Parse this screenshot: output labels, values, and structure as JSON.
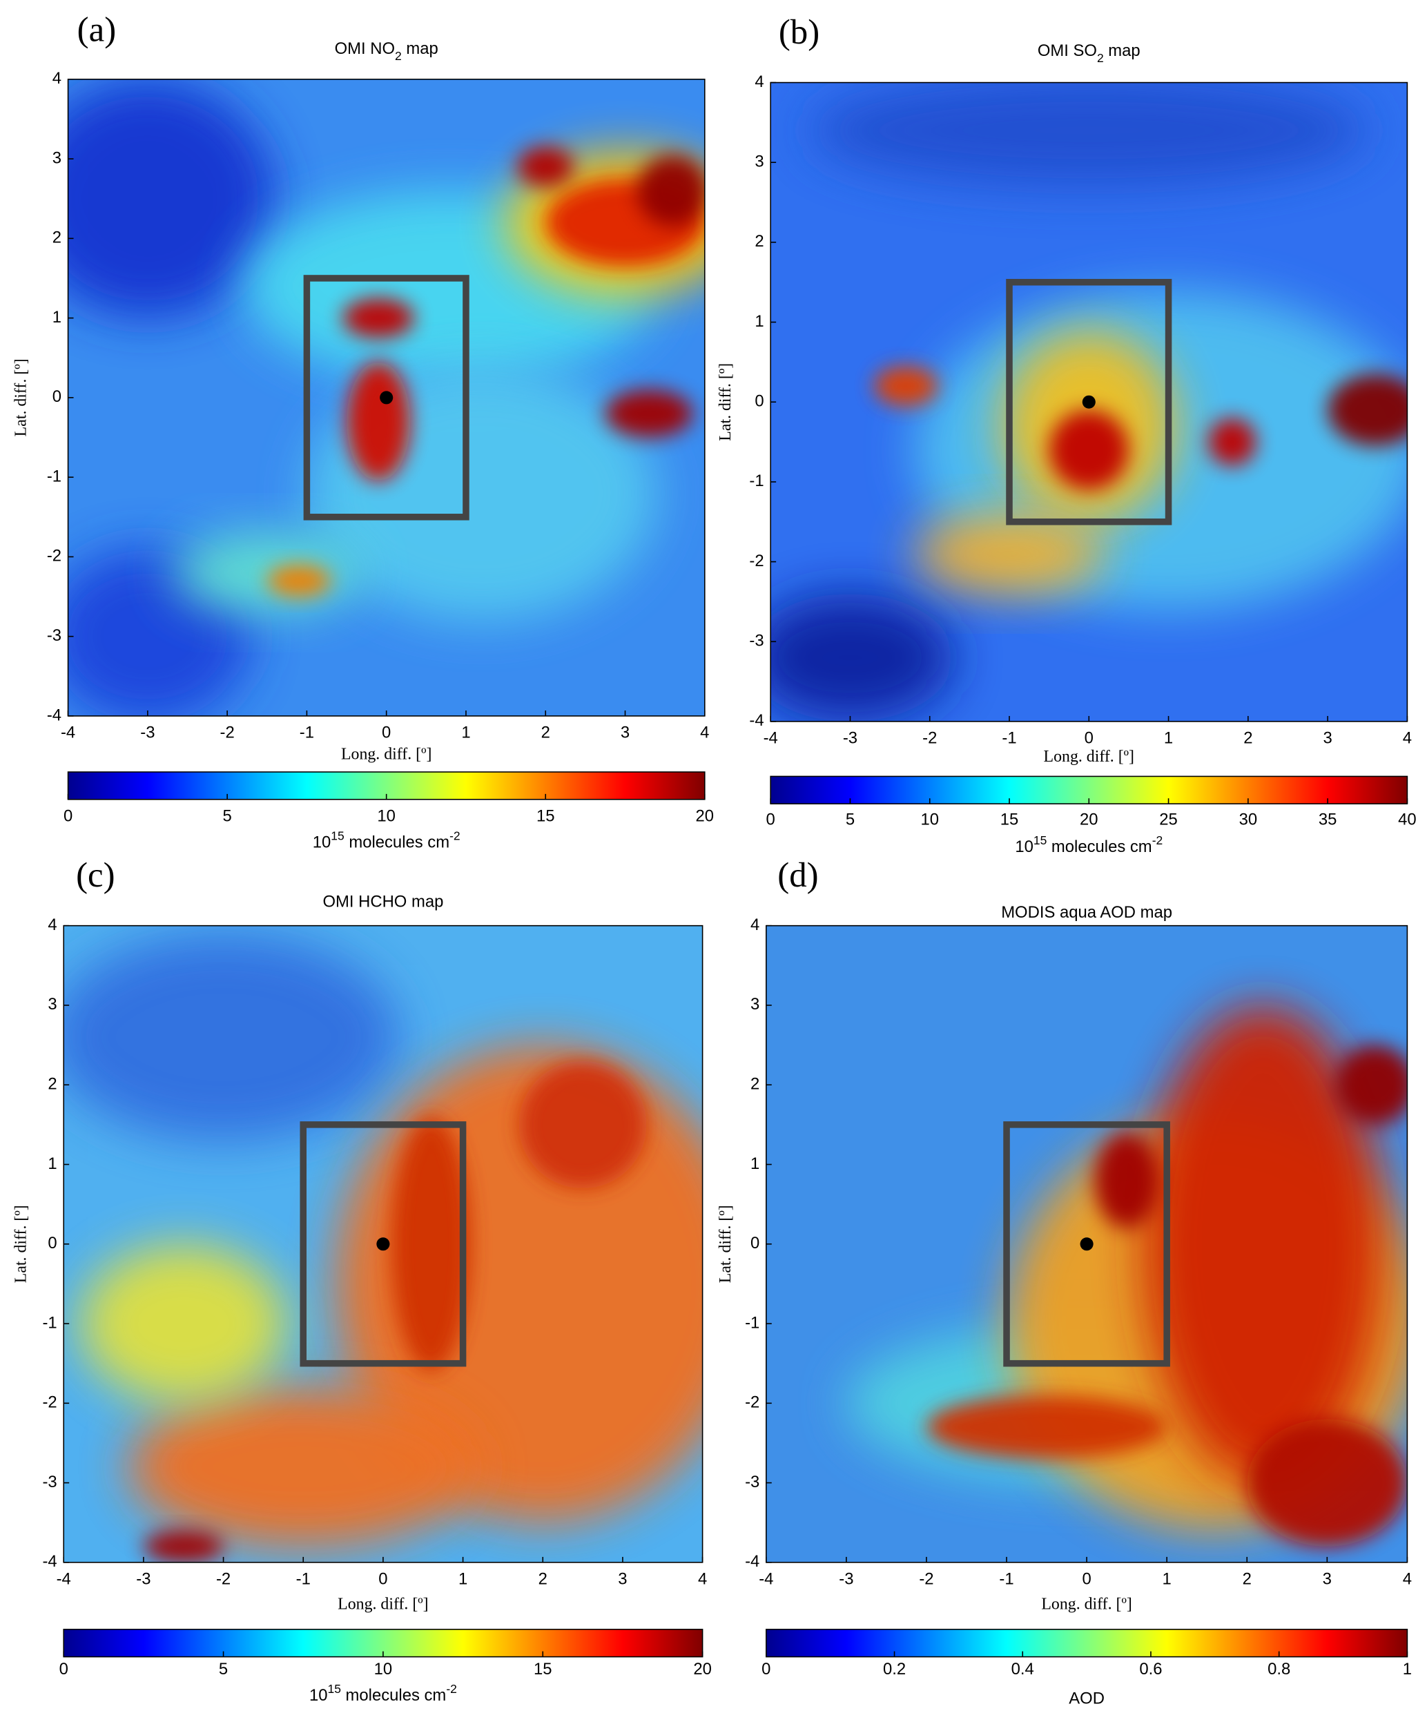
{
  "chart_data": [
    {
      "type": "heatmap",
      "panel": "(a)",
      "title": [
        "OMI NO",
        "2",
        " map"
      ],
      "xlabel": "Long. diff. [º]",
      "ylabel": "Lat. diff. [º]",
      "xlim": [
        -4,
        4
      ],
      "ylim": [
        -4,
        4
      ],
      "xticks": [
        -4,
        -3,
        -2,
        -1,
        0,
        1,
        2,
        3,
        4
      ],
      "yticks": [
        -4,
        -3,
        -2,
        -1,
        0,
        1,
        2,
        3,
        4
      ],
      "colorbar": {
        "lim": [
          0,
          20
        ],
        "ticks": [
          0,
          5,
          10,
          15,
          20
        ],
        "label": [
          "10",
          "15",
          " molecules cm",
          "-2"
        ]
      },
      "box": {
        "x": [
          -1,
          1
        ],
        "y": [
          -1.5,
          1.5
        ]
      },
      "point": {
        "x": 0,
        "y": 0
      }
    },
    {
      "type": "heatmap",
      "panel": "(b)",
      "title": [
        "OMI SO",
        "2",
        " map"
      ],
      "xlabel": "Long. diff. [º]",
      "ylabel": "Lat. diff. [º]",
      "xlim": [
        -4,
        4
      ],
      "ylim": [
        -4,
        4
      ],
      "xticks": [
        -4,
        -3,
        -2,
        -1,
        0,
        1,
        2,
        3,
        4
      ],
      "yticks": [
        -4,
        -3,
        -2,
        -1,
        0,
        1,
        2,
        3,
        4
      ],
      "colorbar": {
        "lim": [
          0,
          40
        ],
        "ticks": [
          0,
          5,
          10,
          15,
          20,
          25,
          30,
          35,
          40
        ],
        "label": [
          "10",
          "15",
          " molecules cm",
          "-2"
        ]
      },
      "box": {
        "x": [
          -1,
          1
        ],
        "y": [
          -1.5,
          1.5
        ]
      },
      "point": {
        "x": 0,
        "y": 0
      }
    },
    {
      "type": "heatmap",
      "panel": "(c)",
      "title": [
        "OMI HCHO map"
      ],
      "xlabel": "Long. diff. [º]",
      "ylabel": "Lat. diff. [º]",
      "xlim": [
        -4,
        4
      ],
      "ylim": [
        -4,
        4
      ],
      "xticks": [
        -4,
        -3,
        -2,
        -1,
        0,
        1,
        2,
        3,
        4
      ],
      "yticks": [
        -4,
        -3,
        -2,
        -1,
        0,
        1,
        2,
        3,
        4
      ],
      "colorbar": {
        "lim": [
          0,
          20
        ],
        "ticks": [
          0,
          5,
          10,
          15,
          20
        ],
        "label": [
          "10",
          "15",
          " molecules cm",
          "-2"
        ]
      },
      "box": {
        "x": [
          -1,
          1
        ],
        "y": [
          -1.5,
          1.5
        ]
      },
      "point": {
        "x": 0,
        "y": 0
      }
    },
    {
      "type": "heatmap",
      "panel": "(d)",
      "title": [
        "MODIS aqua AOD map"
      ],
      "xlabel": "Long. diff. [º]",
      "ylabel": "Lat. diff. [º]",
      "xlim": [
        -4,
        4
      ],
      "ylim": [
        -4,
        4
      ],
      "xticks": [
        -4,
        -3,
        -2,
        -1,
        0,
        1,
        2,
        3,
        4
      ],
      "yticks": [
        -4,
        -3,
        -2,
        -1,
        0,
        1,
        2,
        3,
        4
      ],
      "colorbar": {
        "lim": [
          0,
          1
        ],
        "ticks": [
          0,
          0.2,
          0.4,
          0.6,
          0.8,
          1
        ],
        "label": [
          "AOD"
        ]
      },
      "box": {
        "x": [
          -1,
          1
        ],
        "y": [
          -1.5,
          1.5
        ]
      },
      "point": {
        "x": 0,
        "y": 0
      }
    }
  ]
}
